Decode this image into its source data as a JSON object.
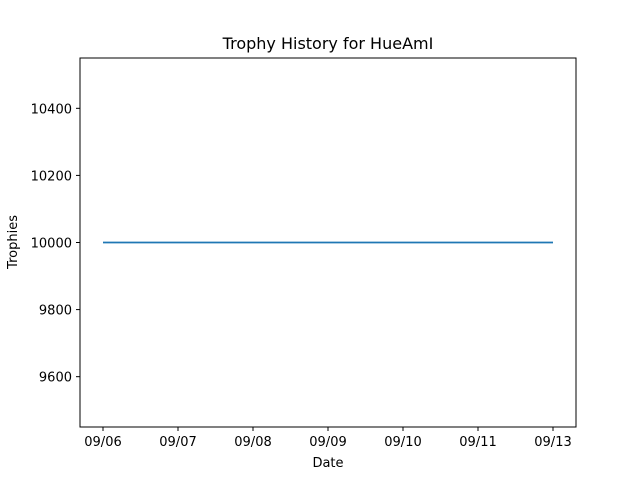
{
  "chart_data": {
    "type": "line",
    "title": "Trophy History for HueAmI",
    "xlabel": "Date",
    "ylabel": "Trophies",
    "x": [
      "09/06",
      "09/07",
      "09/08",
      "09/09",
      "09/10",
      "09/11",
      "09/13"
    ],
    "x_ticks": [
      "09/06",
      "09/07",
      "09/08",
      "09/09",
      "09/10",
      "09/11",
      "09/13"
    ],
    "y_ticks": [
      9600,
      9800,
      10000,
      10200,
      10400
    ],
    "ylim": [
      9450,
      10550
    ],
    "series": [
      {
        "values": [
          10000,
          10000,
          10000,
          10000,
          10000,
          10000,
          10000
        ],
        "color": "#1f77b4"
      }
    ],
    "grid": false
  }
}
